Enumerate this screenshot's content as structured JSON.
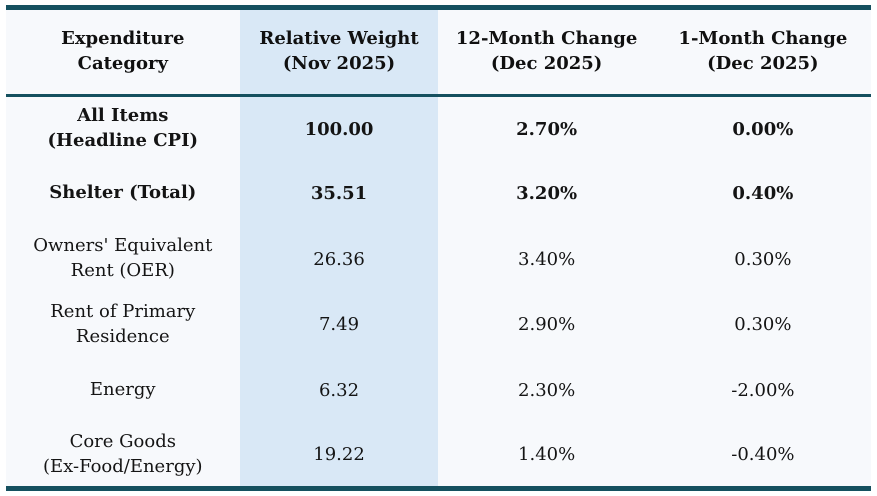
{
  "chart_data": {
    "type": "table",
    "columns": [
      "Expenditure Category",
      "Relative Weight (Nov 2025)",
      "12-Month Change (Dec 2025)",
      "1-Month Change (Dec 2025)"
    ],
    "rows": [
      {
        "category": "All Items (Headline CPI)",
        "relative_weight": 100.0,
        "change_12m_pct": 2.7,
        "change_1m_pct": 0.0
      },
      {
        "category": "Shelter (Total)",
        "relative_weight": 35.51,
        "change_12m_pct": 3.2,
        "change_1m_pct": 0.4
      },
      {
        "category": "Owners' Equivalent Rent (OER)",
        "relative_weight": 26.36,
        "change_12m_pct": 3.4,
        "change_1m_pct": 0.3
      },
      {
        "category": "Rent of Primary Residence",
        "relative_weight": 7.49,
        "change_12m_pct": 2.9,
        "change_1m_pct": 0.3
      },
      {
        "category": "Energy",
        "relative_weight": 6.32,
        "change_12m_pct": 2.3,
        "change_1m_pct": -2.0
      },
      {
        "category": "Core Goods (Ex-Food/Energy)",
        "relative_weight": 19.22,
        "change_12m_pct": 1.4,
        "change_1m_pct": -0.4
      }
    ]
  },
  "table": {
    "header": [
      {
        "line1": "Expenditure",
        "line2": "Category"
      },
      {
        "line1": "Relative Weight",
        "line2": "(Nov 2025)"
      },
      {
        "line1": "12-Month Change",
        "line2": "(Dec 2025)"
      },
      {
        "line1": "1-Month Change",
        "line2": "(Dec 2025)"
      }
    ],
    "rows": [
      {
        "line1": "All Items",
        "line2": "(Headline CPI)",
        "weight": "100.00",
        "m12": "2.70%",
        "m1": "0.00%"
      },
      {
        "line1": "Shelter (Total)",
        "line2": "",
        "weight": "35.51",
        "m12": "3.20%",
        "m1": "0.40%"
      },
      {
        "line1": "Owners' Equivalent",
        "line2": "Rent (OER)",
        "weight": "26.36",
        "m12": "3.40%",
        "m1": "0.30%"
      },
      {
        "line1": "Rent of Primary",
        "line2": "Residence",
        "weight": "7.49",
        "m12": "2.90%",
        "m1": "0.30%"
      },
      {
        "line1": "Energy",
        "line2": "",
        "weight": "6.32",
        "m12": "2.30%",
        "m1": "-2.00%"
      },
      {
        "line1": "Core Goods",
        "line2": "(Ex-Food/Energy)",
        "weight": "19.22",
        "m12": "1.40%",
        "m1": "-0.40%"
      }
    ]
  },
  "colors": {
    "accent_border": "#15505f",
    "highlight_column_bg": "#d9e8f6",
    "table_bg": "#f7f9fc",
    "text": "#141414"
  }
}
